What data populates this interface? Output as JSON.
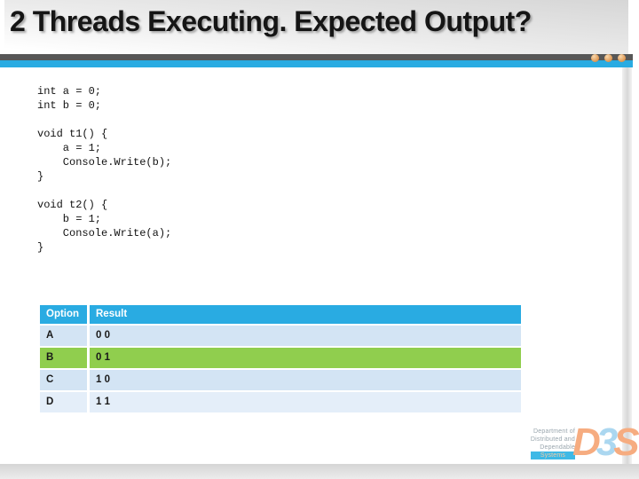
{
  "slide": {
    "title": "2 Threads Executing. Expected Output?"
  },
  "code": {
    "lines": [
      "int a = 0;",
      "int b = 0;",
      "",
      "void t1() {",
      "    a = 1;",
      "    Console.Write(b);",
      "}",
      "",
      "void t2() {",
      "    b = 1;",
      "    Console.Write(a);",
      "}"
    ]
  },
  "table": {
    "columns": [
      "Option",
      "Result"
    ],
    "rows": [
      {
        "option": "A",
        "result": "0 0"
      },
      {
        "option": "B",
        "result": "0 1"
      },
      {
        "option": "C",
        "result": "1 0"
      },
      {
        "option": "D",
        "result": "1 1"
      }
    ],
    "highlighted_option": "B"
  },
  "logo": {
    "lines": [
      "Department of",
      "Distributed and",
      "Dependable"
    ],
    "systems_label": "Systems",
    "acronym": [
      {
        "char": "D",
        "color": "#F6AC80"
      },
      {
        "char": "3",
        "color": "#ABD7F0"
      },
      {
        "char": "S",
        "color": "#F6AC80"
      }
    ]
  },
  "colors": {
    "accent_cyan": "#29ABE2",
    "divider_dark": "#575757",
    "dot_orange": "#E09A55",
    "row_blue": "#D3E4F4",
    "row_blue_light": "#E4EEF9",
    "highlight_green": "#90CE4E",
    "title_text": "#151515",
    "logo_salmon": "#F6AC80",
    "logo_blue": "#ABD7F0"
  }
}
